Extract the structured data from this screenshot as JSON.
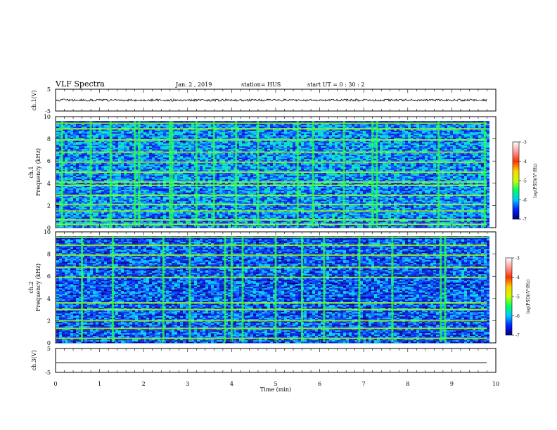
{
  "header": {
    "title": "VLF Spectra",
    "date": "Jan. 2 , 2019",
    "station": "station= HUS",
    "start": "start UT = 0 : 30 : 2"
  },
  "colorbar": {
    "label": "log(PSD)(V²/Hz)",
    "ticks": [
      "-3",
      "-4",
      "-5",
      "-6",
      "-7"
    ],
    "colors": [
      "#00007a",
      "#0020ff",
      "#00c8ff",
      "#00ff64",
      "#c8ff00",
      "#ffd200",
      "#ff3200",
      "#ff9a9a",
      "#ffffff"
    ]
  },
  "chart_data": [
    {
      "type": "line",
      "panel": "ch1-waveform",
      "ylabel": "ch.1(V)",
      "ylim": [
        -5,
        5
      ],
      "yticks": [
        "5",
        "-5"
      ],
      "xlim": [
        0,
        10
      ],
      "series": [
        {
          "description": "noisy trace centred slightly above zero",
          "mean": 0.0,
          "amplitude": 0.5,
          "tmax": 9.8
        }
      ]
    },
    {
      "type": "heatmap",
      "panel": "ch1-spectrogram",
      "ylabel_top": "ch.1",
      "ylabel": "Frequency (kHz)",
      "ylim": [
        0,
        10
      ],
      "yticks": [
        "0",
        "2",
        "4",
        "6",
        "8",
        "10"
      ],
      "xlim": [
        0,
        9.8
      ],
      "zlim": [
        -7,
        -3
      ],
      "background_level": -6.2,
      "tone_lines_khz": [
        0.3,
        0.7,
        1.5,
        2.1,
        2.9,
        3.8,
        4.1,
        5.0,
        5.9,
        6.8,
        7.9,
        8.9,
        9.4
      ],
      "impulse_times_min": [
        0.15,
        0.8,
        1.25,
        1.8,
        1.9,
        2.6,
        2.65,
        3.2,
        3.6,
        4.1,
        4.6,
        5.5,
        5.85,
        6.55,
        7.2,
        7.3,
        8.7,
        9.75
      ],
      "color_scale": "jet"
    },
    {
      "type": "heatmap",
      "panel": "ch2-spectrogram",
      "ylabel_top": "ch.2",
      "ylabel": "Frequency (kHz)",
      "ylim": [
        0,
        10
      ],
      "yticks": [
        "0",
        "2",
        "4",
        "6",
        "8",
        "10"
      ],
      "xlim": [
        0,
        9.8
      ],
      "zlim": [
        -7,
        -3
      ],
      "background_level": -6.4,
      "tone_lines_khz": [
        0.4,
        1.3,
        2.0,
        3.0,
        3.6,
        5.9,
        6.8,
        7.9,
        8.8,
        9.5
      ],
      "impulse_times_min": [
        0.6,
        1.3,
        2.45,
        3.05,
        3.85,
        4.0,
        4.25,
        5.0,
        5.6,
        6.1,
        6.9,
        7.65,
        8.75,
        8.85
      ],
      "color_scale": "jet"
    },
    {
      "type": "line",
      "panel": "ch3-waveform",
      "ylabel": "ch.3(V)",
      "ylim": [
        -5,
        5
      ],
      "yticks": [
        "5",
        "-5"
      ],
      "xlim": [
        0,
        10
      ],
      "series": [
        {
          "description": "flat line",
          "mean": -1.0,
          "amplitude": 0.0,
          "tmax": 9.8
        }
      ]
    }
  ],
  "xaxis": {
    "label": "Time (min)",
    "ticks": [
      "0",
      "1",
      "2",
      "3",
      "4",
      "5",
      "6",
      "7",
      "8",
      "9",
      "10"
    ]
  }
}
